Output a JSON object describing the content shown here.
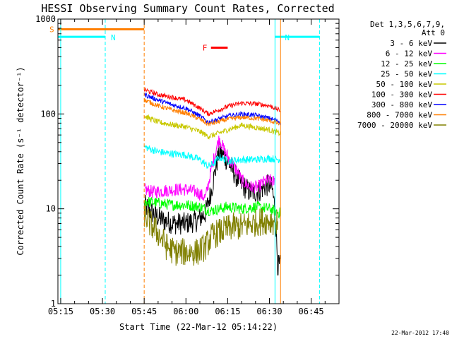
{
  "chart_data": {
    "type": "line",
    "title": "HESSI Observing Summary Count Rates, Corrected",
    "xlabel": "Start Time (22-Mar-12 05:14:22)",
    "ylabel": "Corrected Count Rate (s⁻¹ detector⁻¹)",
    "x_scale": "time",
    "y_scale": "log",
    "xlim": [
      "05:14",
      "06:55"
    ],
    "ylim": [
      1,
      1000
    ],
    "x_ticks": [
      "05:15",
      "05:30",
      "05:45",
      "06:00",
      "06:15",
      "06:30",
      "06:45"
    ],
    "y_ticks": [
      "1",
      "10",
      "100",
      "1000"
    ],
    "detectors_note": "Det 1,3,5,6,7,9,",
    "attenuator_note": "Att 0",
    "footer_date": "22-Mar-2012 17:40",
    "flags": [
      {
        "label": "S",
        "color": "#ff7f00",
        "x_start": "05:14",
        "x_end": "05:45",
        "y": 780
      },
      {
        "label": "N",
        "color": "#00ffff",
        "x_start": "05:14",
        "x_end": "05:31",
        "y": 650
      },
      {
        "label": "N",
        "color": "#00ffff",
        "x_start": "06:32",
        "x_end": "06:48",
        "y": 650
      },
      {
        "label": "F",
        "color": "#ff0000",
        "x_start": "06:09",
        "x_end": "06:15",
        "y": 500
      }
    ],
    "boundaries": [
      {
        "color": "#00ffff",
        "style": "solid",
        "x": "05:15"
      },
      {
        "color": "#00ffff",
        "style": "dashed",
        "x": "05:31"
      },
      {
        "color": "#ff7f00",
        "style": "dashed",
        "x": "05:45"
      },
      {
        "color": "#00ffff",
        "style": "solid",
        "x": "06:32"
      },
      {
        "color": "#ff7f00",
        "style": "solid",
        "x": "06:34"
      },
      {
        "color": "#00ffff",
        "style": "dashed",
        "x": "06:48"
      }
    ],
    "series": [
      {
        "name": "3 - 6 keV",
        "color": "#000000",
        "noise": 0.12,
        "x": [
          "05:45",
          "05:48",
          "05:52",
          "05:56",
          "06:00",
          "06:04",
          "06:07",
          "06:09",
          "06:11",
          "06:12",
          "06:14",
          "06:16",
          "06:18",
          "06:20",
          "06:23",
          "06:26",
          "06:28",
          "06:30",
          "06:31",
          "06:32",
          "06:33",
          "06:34"
        ],
        "y": [
          11,
          9,
          7.5,
          7,
          7,
          7.5,
          9,
          15,
          30,
          40,
          35,
          28,
          22,
          18,
          15,
          15,
          17,
          18,
          16,
          10,
          2.5,
          2.5
        ]
      },
      {
        "name": "6 - 12 keV",
        "color": "#ff00ff",
        "noise": 0.07,
        "x": [
          "05:45",
          "05:48",
          "05:52",
          "05:56",
          "06:00",
          "06:04",
          "06:07",
          "06:09",
          "06:11",
          "06:12",
          "06:14",
          "06:16",
          "06:18",
          "06:20",
          "06:23",
          "06:26",
          "06:28",
          "06:30",
          "06:32"
        ],
        "y": [
          16,
          15,
          15.5,
          16,
          16,
          15,
          13,
          25,
          45,
          55,
          40,
          32,
          26,
          20,
          17,
          17,
          19,
          20,
          19
        ]
      },
      {
        "name": "12 - 25 keV",
        "color": "#00ff00",
        "noise": 0.06,
        "x": [
          "05:45",
          "05:50",
          "05:55",
          "06:00",
          "06:05",
          "06:09",
          "06:12",
          "06:15",
          "06:20",
          "06:25",
          "06:30",
          "06:34"
        ],
        "y": [
          12,
          11.5,
          11,
          11,
          10.5,
          9.5,
          10,
          10.5,
          10,
          10.5,
          10,
          9
        ]
      },
      {
        "name": "25 - 50 keV",
        "color": "#00ffff",
        "noise": 0.04,
        "x": [
          "05:45",
          "05:50",
          "05:55",
          "06:00",
          "06:05",
          "06:08",
          "06:10",
          "06:12",
          "06:15",
          "06:20",
          "06:25",
          "06:30",
          "06:34"
        ],
        "y": [
          45,
          40,
          38,
          37,
          33,
          28,
          30,
          35,
          32,
          33,
          33,
          34,
          33
        ]
      },
      {
        "name": "50 - 100 keV",
        "color": "#c8c800",
        "noise": 0.03,
        "x": [
          "05:45",
          "05:50",
          "05:55",
          "06:00",
          "06:05",
          "06:08",
          "06:10",
          "06:15",
          "06:20",
          "06:25",
          "06:30",
          "06:34"
        ],
        "y": [
          95,
          82,
          77,
          73,
          65,
          58,
          60,
          68,
          76,
          72,
          68,
          62
        ]
      },
      {
        "name": "100 - 300 keV",
        "color": "#ff0000",
        "noise": 0.025,
        "x": [
          "05:45",
          "05:50",
          "05:55",
          "06:00",
          "06:05",
          "06:08",
          "06:10",
          "06:15",
          "06:20",
          "06:25",
          "06:30",
          "06:34"
        ],
        "y": [
          180,
          160,
          150,
          140,
          115,
          100,
          105,
          120,
          130,
          128,
          122,
          108
        ]
      },
      {
        "name": "300 - 800 keV",
        "color": "#0000ff",
        "noise": 0.025,
        "x": [
          "05:45",
          "05:50",
          "05:55",
          "06:00",
          "06:05",
          "06:08",
          "06:10",
          "06:15",
          "06:20",
          "06:25",
          "06:30",
          "06:34"
        ],
        "y": [
          160,
          140,
          125,
          115,
          95,
          82,
          85,
          95,
          100,
          97,
          90,
          82
        ]
      },
      {
        "name": "800 - 7000 keV",
        "color": "#ff7f00",
        "noise": 0.025,
        "x": [
          "05:45",
          "05:50",
          "05:55",
          "06:00",
          "06:05",
          "06:08",
          "06:10",
          "06:15",
          "06:20",
          "06:25",
          "06:30",
          "06:34"
        ],
        "y": [
          140,
          122,
          110,
          102,
          88,
          78,
          80,
          88,
          92,
          90,
          85,
          78
        ]
      },
      {
        "name": "7000 - 20000 keV",
        "color": "#808000",
        "noise": 0.15,
        "x": [
          "05:45",
          "05:47",
          "05:49",
          "05:51",
          "05:53",
          "05:56",
          "06:00",
          "06:04",
          "06:07",
          "06:09",
          "06:11",
          "06:14",
          "06:17",
          "06:20",
          "06:24",
          "06:28",
          "06:31",
          "06:33"
        ],
        "y": [
          9,
          7,
          6,
          5,
          4,
          3.5,
          3.5,
          3.5,
          4,
          5,
          5.5,
          6,
          6.5,
          6.5,
          7,
          7.5,
          7.5,
          7
        ]
      }
    ]
  }
}
